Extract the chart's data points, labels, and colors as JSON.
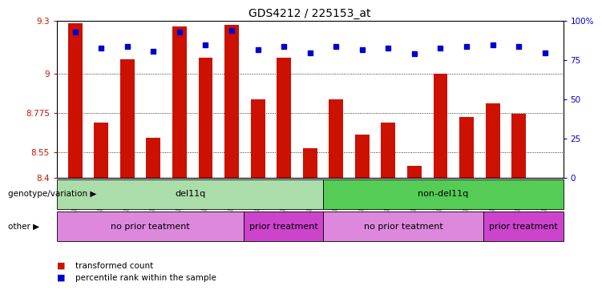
{
  "title": "GDS4212 / 225153_at",
  "samples": [
    "GSM652229",
    "GSM652230",
    "GSM652232",
    "GSM652233",
    "GSM652234",
    "GSM652235",
    "GSM652236",
    "GSM652231",
    "GSM652237",
    "GSM652238",
    "GSM652241",
    "GSM652242",
    "GSM652243",
    "GSM652244",
    "GSM652245",
    "GSM652247",
    "GSM652239",
    "GSM652240",
    "GSM652246"
  ],
  "bar_values": [
    9.29,
    8.72,
    9.08,
    8.63,
    9.27,
    9.09,
    9.28,
    8.85,
    9.09,
    8.57,
    8.85,
    8.65,
    8.72,
    8.47,
    9.0,
    8.75,
    8.83,
    8.77,
    8.4
  ],
  "percentile_values": [
    93,
    83,
    84,
    81,
    93,
    85,
    94,
    82,
    84,
    80,
    84,
    82,
    83,
    79,
    83,
    84,
    85,
    84,
    80
  ],
  "ymin": 8.4,
  "ymax": 9.3,
  "yticks": [
    8.4,
    8.55,
    8.775,
    9.0,
    9.3
  ],
  "ytick_labels": [
    "8.4",
    "8.55",
    "8.775",
    "9",
    "9.3"
  ],
  "right_yticks": [
    0,
    25,
    50,
    75,
    100
  ],
  "right_ytick_labels": [
    "0",
    "25",
    "50",
    "75",
    "100%"
  ],
  "bar_color": "#cc1100",
  "dot_color": "#0000cc",
  "genotype_groups": [
    {
      "label": "del11q",
      "start": 0,
      "end": 10,
      "color": "#aaddaa"
    },
    {
      "label": "non-del11q",
      "start": 10,
      "end": 19,
      "color": "#55cc55"
    }
  ],
  "other_groups": [
    {
      "label": "no prior teatment",
      "start": 0,
      "end": 7,
      "color": "#dd88dd"
    },
    {
      "label": "prior treatment",
      "start": 7,
      "end": 10,
      "color": "#cc44cc"
    },
    {
      "label": "no prior teatment",
      "start": 10,
      "end": 16,
      "color": "#dd88dd"
    },
    {
      "label": "prior treatment",
      "start": 16,
      "end": 19,
      "color": "#cc44cc"
    }
  ],
  "genotype_label": "genotype/variation",
  "other_label": "other",
  "legend_items": [
    {
      "label": "transformed count",
      "color": "#cc1100"
    },
    {
      "label": "percentile rank within the sample",
      "color": "#0000cc"
    }
  ],
  "background_color": "#ffffff",
  "left_axis_color": "#cc1100",
  "right_axis_color": "#0000cc"
}
